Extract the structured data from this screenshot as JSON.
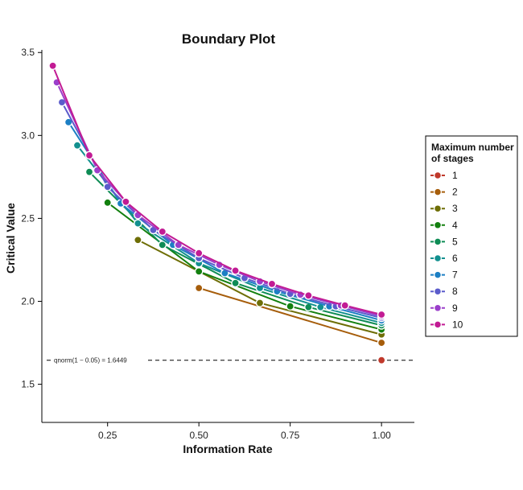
{
  "chart_data": {
    "type": "line",
    "title": "Boundary Plot",
    "xlabel": "Information Rate",
    "ylabel": "Critical Value",
    "xlim": [
      0.07,
      1.09
    ],
    "ylim": [
      1.27,
      3.54
    ],
    "x_ticks": [
      0.25,
      0.5,
      0.75,
      1.0
    ],
    "x_tick_labels": [
      "0.25",
      "0.50",
      "0.75",
      "1.00"
    ],
    "y_ticks": [
      1.5,
      2.0,
      2.5,
      3.0,
      3.5
    ],
    "y_tick_labels": [
      "1.5",
      "2.0",
      "2.5",
      "3.0",
      "3.5"
    ],
    "grid": false,
    "legend": {
      "title": "Maximum number\nof stages",
      "position": "right"
    },
    "reference_line": {
      "y": 1.6449,
      "style": "dashed",
      "label": "qnorm(1 − 0.05) = 1.6449"
    },
    "series": [
      {
        "name": "1",
        "color": "#C0392B",
        "x": [
          1.0
        ],
        "y": [
          1.645
        ]
      },
      {
        "name": "2",
        "color": "#A65D0B",
        "x": [
          0.5,
          1.0
        ],
        "y": [
          2.08,
          1.75
        ]
      },
      {
        "name": "3",
        "color": "#6E6E06",
        "x": [
          0.333,
          0.667,
          1.0
        ],
        "y": [
          2.37,
          1.99,
          1.8
        ]
      },
      {
        "name": "4",
        "color": "#13800F",
        "x": [
          0.25,
          0.5,
          0.75,
          1.0
        ],
        "y": [
          2.595,
          2.18,
          1.97,
          1.83
        ]
      },
      {
        "name": "5",
        "color": "#0E8C55",
        "x": [
          0.2,
          0.4,
          0.6,
          0.8,
          1.0
        ],
        "y": [
          2.78,
          2.34,
          2.11,
          1.965,
          1.855
        ]
      },
      {
        "name": "6",
        "color": "#12908F",
        "x": [
          0.167,
          0.333,
          0.5,
          0.667,
          0.833,
          1.0
        ],
        "y": [
          2.94,
          2.47,
          2.23,
          2.08,
          1.965,
          1.87
        ]
      },
      {
        "name": "7",
        "color": "#1C7FC4",
        "x": [
          0.143,
          0.286,
          0.429,
          0.571,
          0.714,
          0.857,
          1.0
        ],
        "y": [
          3.08,
          2.59,
          2.34,
          2.17,
          2.06,
          1.97,
          1.885
        ]
      },
      {
        "name": "8",
        "color": "#5B5CCB",
        "x": [
          0.125,
          0.25,
          0.375,
          0.5,
          0.625,
          0.75,
          0.875,
          1.0
        ],
        "y": [
          3.2,
          2.69,
          2.43,
          2.26,
          2.14,
          2.045,
          1.97,
          1.9
        ]
      },
      {
        "name": "9",
        "color": "#9B3FCB",
        "x": [
          0.111,
          0.222,
          0.333,
          0.444,
          0.556,
          0.667,
          0.778,
          0.889,
          1.0
        ],
        "y": [
          3.32,
          2.79,
          2.52,
          2.34,
          2.22,
          2.12,
          2.04,
          1.975,
          1.91
        ]
      },
      {
        "name": "10",
        "color": "#C21B94",
        "x": [
          0.1,
          0.2,
          0.3,
          0.4,
          0.5,
          0.6,
          0.7,
          0.8,
          0.9,
          1.0
        ],
        "y": [
          3.42,
          2.88,
          2.6,
          2.42,
          2.29,
          2.185,
          2.105,
          2.035,
          1.975,
          1.92
        ]
      }
    ]
  }
}
